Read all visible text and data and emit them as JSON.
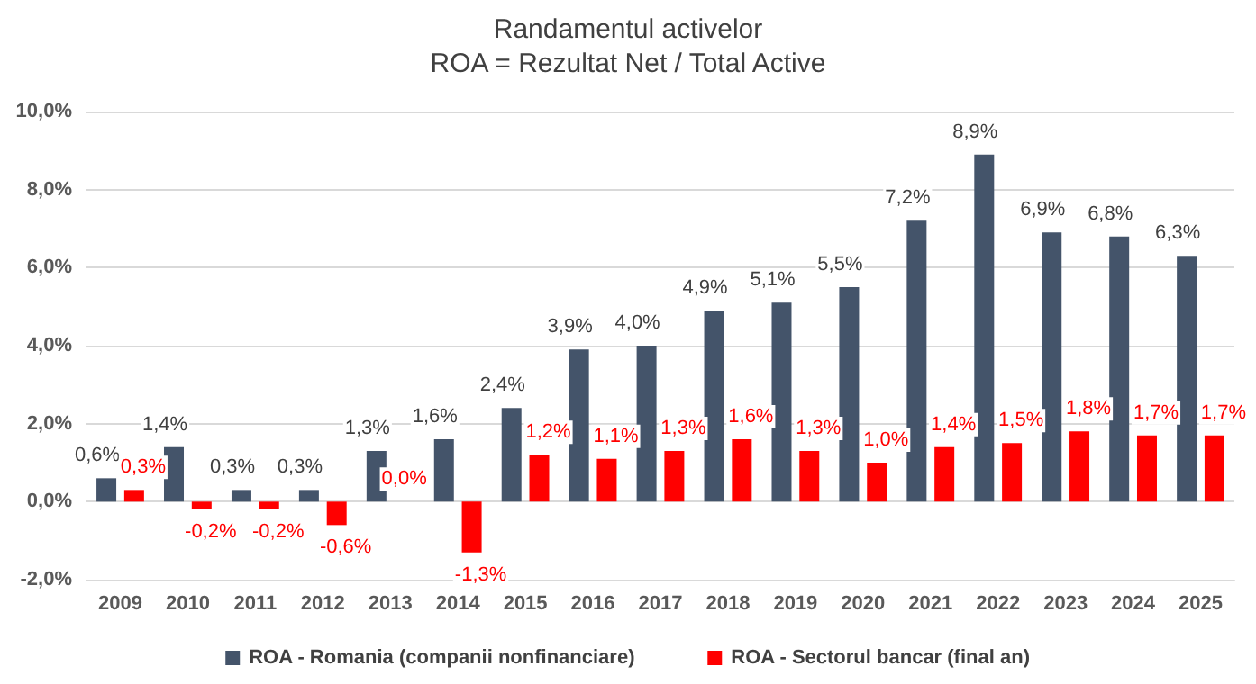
{
  "chart_data": {
    "type": "bar",
    "title": "Randamentul activelor",
    "subtitle": "ROA = Rezultat Net / Total Active",
    "categories": [
      "2009",
      "2010",
      "2011",
      "2012",
      "2013",
      "2014",
      "2015",
      "2016",
      "2017",
      "2018",
      "2019",
      "2020",
      "2021",
      "2022",
      "2023",
      "2024",
      "2025"
    ],
    "series": [
      {
        "name": "ROA - Romania (companii nonfinanciare)",
        "color": "#44546a",
        "values": [
          0.6,
          1.4,
          0.3,
          0.3,
          1.3,
          1.6,
          2.4,
          3.9,
          4.0,
          4.9,
          5.1,
          5.5,
          7.2,
          8.9,
          6.9,
          6.8,
          6.3
        ],
        "value_labels": [
          "0,6%",
          "1,4%",
          "0,3%",
          "0,3%",
          "1,3%",
          "1,6%",
          "2,4%",
          "3,9%",
          "4,0%",
          "4,9%",
          "5,1%",
          "5,5%",
          "7,2%",
          "8,9%",
          "6,9%",
          "6,8%",
          "6,3%"
        ]
      },
      {
        "name": "ROA - Sectorul bancar (final an)",
        "color": "#ff0000",
        "values": [
          0.3,
          -0.2,
          -0.2,
          -0.6,
          0.0,
          -1.3,
          1.2,
          1.1,
          1.3,
          1.6,
          1.3,
          1.0,
          1.4,
          1.5,
          1.8,
          1.7,
          1.7
        ],
        "value_labels": [
          "0,3%",
          "-0,2%",
          "-0,2%",
          "-0,6%",
          "0,0%",
          "-1,3%",
          "1,2%",
          "1,1%",
          "1,3%",
          "1,6%",
          "1,3%",
          "1,0%",
          "1,4%",
          "1,5%",
          "1,8%",
          "1,7%",
          "1,7%"
        ]
      }
    ],
    "ylim": [
      -2,
      10
    ],
    "yticks": [
      {
        "value": -2,
        "label": "-2,0%"
      },
      {
        "value": 0,
        "label": "0,0%"
      },
      {
        "value": 2,
        "label": "2,0%"
      },
      {
        "value": 4,
        "label": "4,0%"
      },
      {
        "value": 6,
        "label": "6,0%"
      },
      {
        "value": 8,
        "label": "8,0%"
      },
      {
        "value": 10,
        "label": "10,0%"
      }
    ],
    "grid": "y",
    "legend": "bottom"
  }
}
